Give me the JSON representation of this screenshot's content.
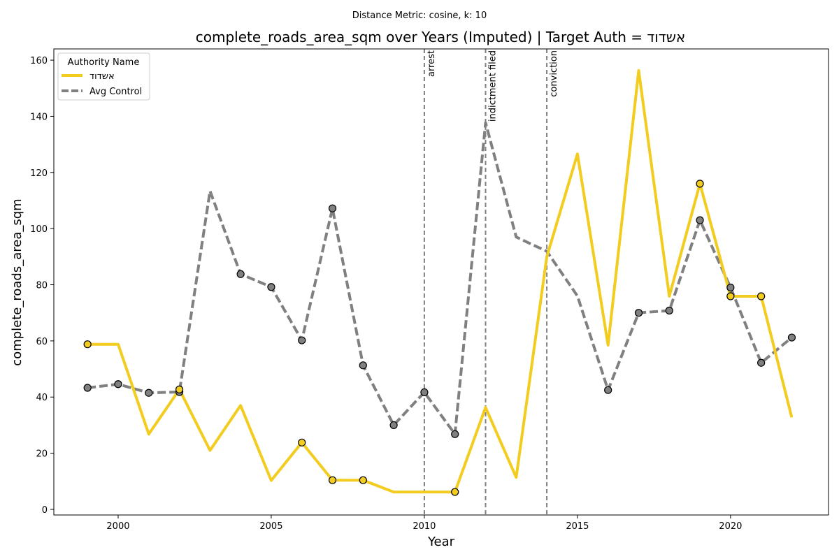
{
  "chart_data": {
    "type": "line",
    "suptitle": "Distance Metric: cosine, k: 10",
    "title": "complete_roads_area_sqm over Years (Imputed) | Target Auth = אשדוד",
    "xlabel": "Year",
    "ylabel": "complete_roads_area_sqm",
    "xlim": [
      1997.9,
      2023.2
    ],
    "ylim": [
      -2,
      164
    ],
    "xticks": [
      "2000",
      "2005",
      "2010",
      "2015",
      "2020"
    ],
    "yticks": [
      "0",
      "20",
      "40",
      "60",
      "80",
      "100",
      "120",
      "140",
      "160"
    ],
    "grid": false,
    "legend": {
      "title": "Authority Name",
      "placement": "top-left",
      "entries": [
        "אשדוד",
        "Avg Control"
      ]
    },
    "annotations": [
      {
        "x": 2010,
        "label": "arrest"
      },
      {
        "x": 2012,
        "label": "indictment filed"
      },
      {
        "x": 2014,
        "label": "conviction"
      }
    ],
    "x": [
      1999,
      2000,
      2001,
      2002,
      2003,
      2004,
      2005,
      2006,
      2007,
      2008,
      2009,
      2010,
      2011,
      2012,
      2013,
      2014,
      2015,
      2016,
      2017,
      2018,
      2019,
      2020,
      2021,
      2022
    ],
    "series": [
      {
        "name": "אשדוד",
        "color": "#f2cc1f",
        "style": "solid",
        "values": [
          58.8,
          58.8,
          26.8,
          42.7,
          21.0,
          37.0,
          10.3,
          23.8,
          10.4,
          10.4,
          6.2,
          6.2,
          6.2,
          36.3,
          11.4,
          90.0,
          126.6,
          58.5,
          156.3,
          75.9,
          116.0,
          75.9,
          75.9,
          32.8
        ],
        "observed_x": [
          1999,
          2002,
          2006,
          2007,
          2008,
          2011,
          2019,
          2020,
          2021
        ]
      },
      {
        "name": "Avg Control",
        "color": "#808080",
        "style": "dashed",
        "values": [
          43.3,
          44.6,
          41.5,
          41.8,
          113.4,
          83.8,
          79.2,
          60.2,
          107.2,
          51.3,
          30.0,
          41.7,
          26.8,
          137.7,
          97.0,
          91.9,
          76.0,
          42.5,
          70.0,
          70.8,
          103.0,
          79.0,
          52.2,
          61.2
        ],
        "observed_x": [
          1999,
          2000,
          2001,
          2002,
          2004,
          2005,
          2006,
          2007,
          2008,
          2009,
          2010,
          2011,
          2016,
          2017,
          2018,
          2019,
          2020,
          2021,
          2022
        ]
      }
    ]
  }
}
